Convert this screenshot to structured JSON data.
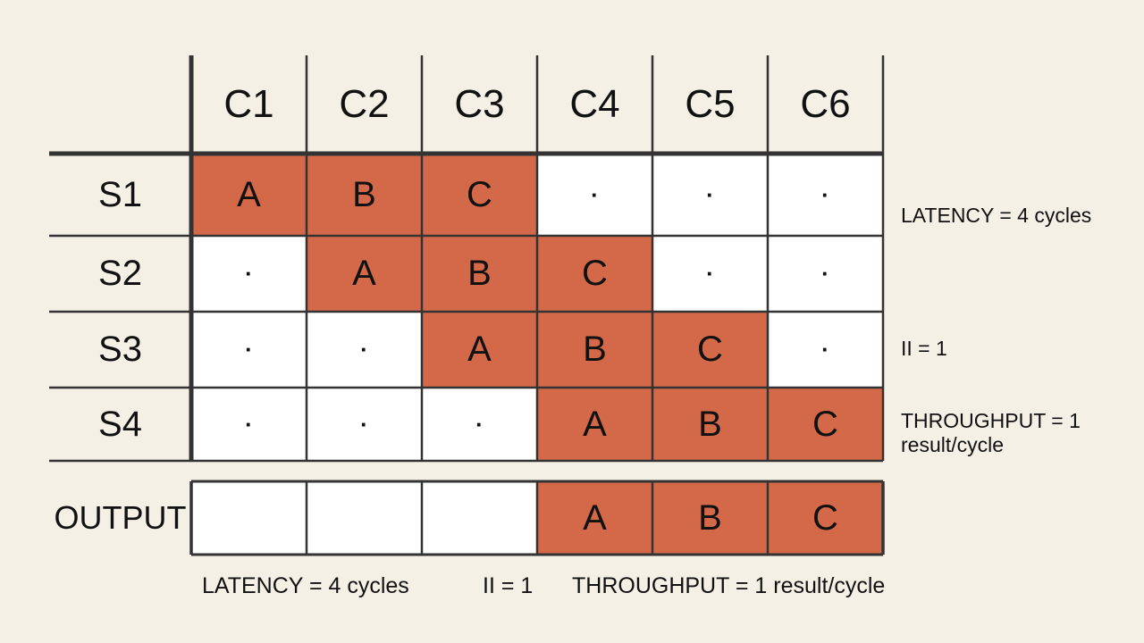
{
  "colors": {
    "background": "#f4f0e6",
    "active_cell": "#d4694a",
    "empty_cell": "#ffffff",
    "grid_line": "#333333",
    "text": "#111111"
  },
  "columns": [
    "C1",
    "C2",
    "C3",
    "C4",
    "C5",
    "C6"
  ],
  "stages": [
    {
      "label": "S1",
      "cells": [
        "A",
        "B",
        "C",
        "·",
        "·",
        "·"
      ]
    },
    {
      "label": "S2",
      "cells": [
        "·",
        "A",
        "B",
        "C",
        "·",
        "·"
      ]
    },
    {
      "label": "S3",
      "cells": [
        "·",
        "·",
        "A",
        "B",
        "C",
        "·"
      ]
    },
    {
      "label": "S4",
      "cells": [
        "·",
        "·",
        "·",
        "A",
        "B",
        "C"
      ]
    }
  ],
  "output": {
    "label": "OUTPUT",
    "cells": [
      "",
      "",
      "",
      "A",
      "B",
      "C"
    ]
  },
  "side_notes": {
    "latency": "LATENCY = 4 cycles",
    "ii": "II = 1",
    "throughput_line1": "THROUGHPUT = 1",
    "throughput_line2": "result/cycle"
  },
  "bottom_notes": {
    "latency": "LATENCY = 4 cycles",
    "ii": "II = 1",
    "throughput": "THROUGHPUT = 1 result/cycle"
  }
}
